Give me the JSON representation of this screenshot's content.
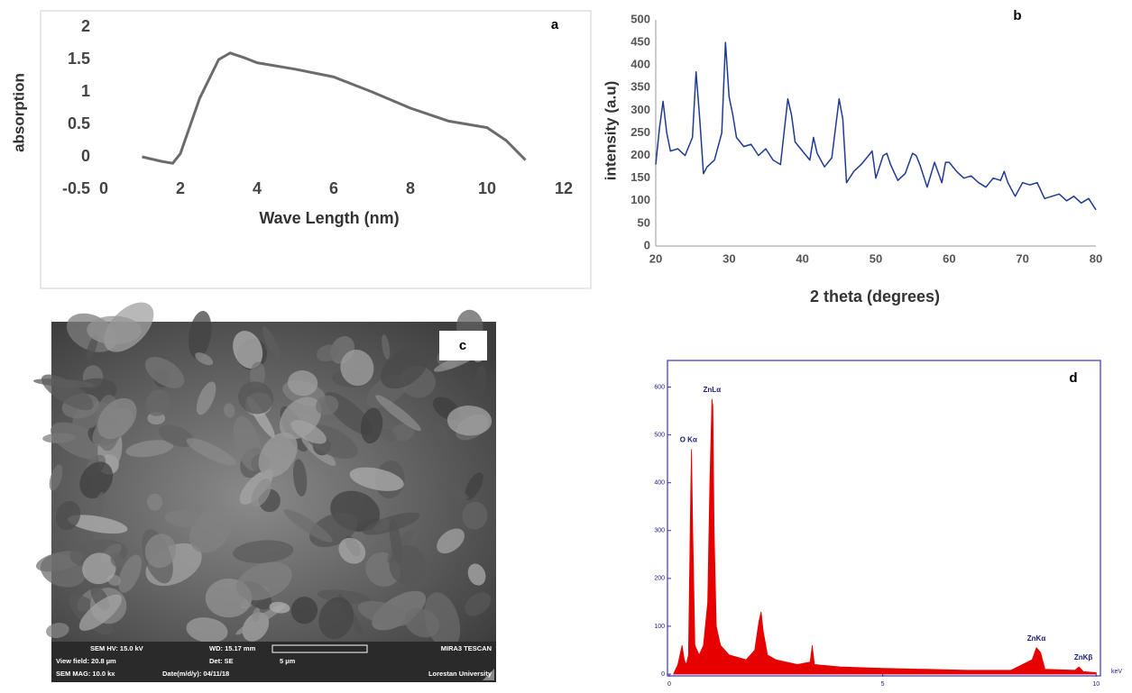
{
  "chart_data": [
    {
      "type": "line",
      "panel_label": "a",
      "xlabel": "Wave Length (nm)",
      "ylabel": "absorption",
      "color": "#6b6b6b",
      "x": [
        1,
        1.5,
        1.8,
        2,
        2.5,
        3,
        3.3,
        3.7,
        4,
        5,
        6,
        7,
        8,
        9,
        9.5,
        10,
        10.5,
        11
      ],
      "values": [
        0,
        -0.07,
        -0.1,
        0.05,
        0.9,
        1.5,
        1.6,
        1.52,
        1.45,
        1.35,
        1.23,
        1.0,
        0.75,
        0.55,
        0.5,
        0.45,
        0.25,
        -0.05
      ],
      "xlim": [
        0,
        12
      ],
      "xticks": [
        0,
        2,
        4,
        6,
        8,
        10,
        12
      ],
      "ylim": [
        -0.5,
        2
      ],
      "yticks": [
        -0.5,
        0,
        0.5,
        1,
        1.5,
        2
      ]
    },
    {
      "type": "line",
      "panel_label": "b",
      "xlabel": "2 theta (degrees)",
      "ylabel": "intensity (a.u)",
      "color": "#1f3a93",
      "x": [
        20,
        20.5,
        21,
        21.5,
        22,
        23,
        24,
        25,
        25.5,
        26,
        26.5,
        27,
        28,
        29,
        29.5,
        30,
        30.5,
        31,
        32,
        33,
        34,
        35,
        36,
        37,
        38,
        38.5,
        39,
        40,
        41,
        41.5,
        42,
        43,
        44,
        45,
        45.5,
        46,
        47,
        48,
        49,
        49.5,
        50,
        51,
        51.5,
        52,
        53,
        54,
        55,
        55.5,
        56,
        57,
        58,
        59,
        59.5,
        60,
        61,
        62,
        63,
        64,
        65,
        66,
        67,
        67.5,
        68,
        69,
        70,
        71,
        72,
        73,
        74,
        75,
        76,
        77,
        78,
        79,
        80
      ],
      "values": [
        180,
        260,
        320,
        250,
        210,
        215,
        200,
        240,
        385,
        280,
        160,
        175,
        190,
        250,
        450,
        330,
        290,
        240,
        220,
        225,
        200,
        215,
        190,
        180,
        325,
        290,
        230,
        210,
        190,
        240,
        205,
        175,
        195,
        325,
        280,
        140,
        165,
        180,
        200,
        210,
        150,
        200,
        205,
        180,
        145,
        160,
        205,
        200,
        180,
        130,
        185,
        140,
        185,
        185,
        165,
        150,
        155,
        140,
        130,
        150,
        145,
        165,
        140,
        110,
        140,
        135,
        140,
        105,
        110,
        115,
        100,
        110,
        95,
        105,
        80
      ],
      "xlim": [
        20,
        80
      ],
      "xticks": [
        20,
        30,
        40,
        50,
        60,
        70,
        80
      ],
      "ylim": [
        0,
        500
      ],
      "yticks": [
        0,
        50,
        100,
        150,
        200,
        250,
        300,
        350,
        400,
        450,
        500
      ]
    },
    {
      "type": "area",
      "panel_label": "d",
      "xunit": "keV",
      "color": "#e60000",
      "x": [
        0.1,
        0.2,
        0.3,
        0.35,
        0.4,
        0.45,
        0.5,
        0.52,
        0.55,
        0.6,
        0.7,
        0.8,
        0.9,
        0.95,
        1.0,
        1.02,
        1.05,
        1.1,
        1.2,
        1.4,
        1.6,
        1.8,
        2.0,
        2.1,
        2.15,
        2.2,
        2.3,
        2.5,
        3.0,
        3.3,
        3.35,
        3.4,
        4,
        5,
        6,
        7,
        8,
        8.5,
        8.6,
        8.7,
        8.8,
        9.5,
        9.6,
        9.7,
        10
      ],
      "values": [
        0,
        20,
        60,
        30,
        20,
        40,
        370,
        470,
        300,
        60,
        40,
        60,
        150,
        400,
        575,
        560,
        300,
        100,
        60,
        40,
        35,
        30,
        50,
        110,
        130,
        90,
        40,
        30,
        20,
        25,
        60,
        20,
        15,
        12,
        10,
        8,
        8,
        30,
        55,
        45,
        10,
        8,
        15,
        5,
        3
      ],
      "annotations": [
        {
          "text": "O Kα",
          "x": 0.45
        },
        {
          "text": "ZnLα",
          "x": 1.0
        },
        {
          "text": "ZnKα",
          "x": 8.6
        },
        {
          "text": "ZnKβ",
          "x": 9.7
        }
      ],
      "xlim": [
        0,
        10.1
      ],
      "xticks": [
        0,
        5,
        10
      ],
      "ylim": [
        0,
        650
      ],
      "yticks": [
        0,
        100,
        200,
        300,
        400,
        500,
        600
      ]
    }
  ],
  "sem_image": {
    "panel_label": "c",
    "info_bar": [
      "SEM HV: 15.0 kV",
      "WD: 15.17 mm",
      "MIRA3 TESCAN",
      "View field: 20.8 µm",
      "Det: SE",
      "5 µm",
      "SEM MAG: 10.0 kx",
      "Date(m/d/y): 04/11/18",
      "Lorestan University"
    ]
  }
}
